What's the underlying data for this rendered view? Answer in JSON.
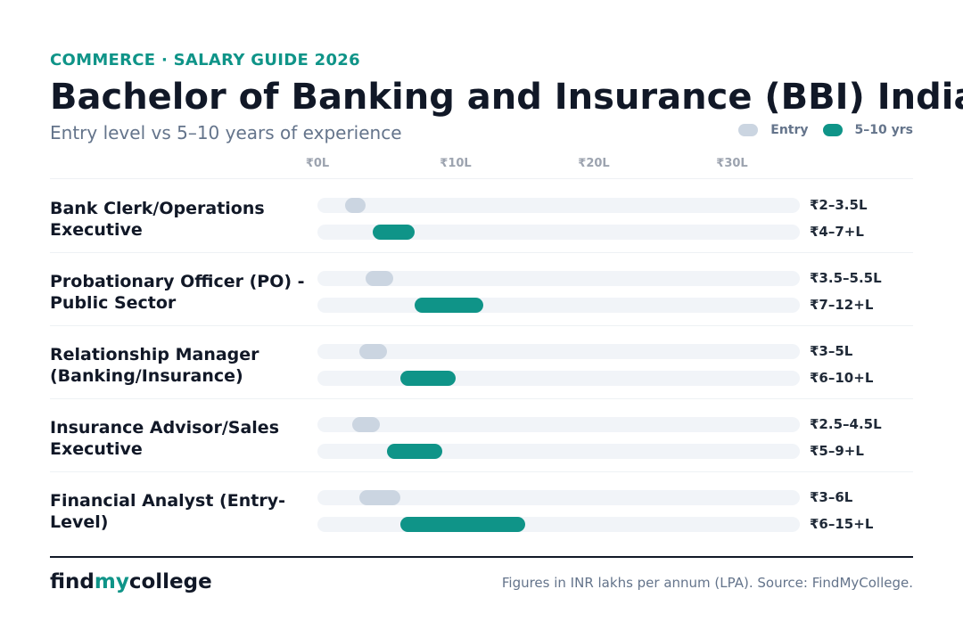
{
  "header": {
    "eyebrow": "COMMERCE · SALARY GUIDE 2026",
    "title": "Bachelor of Banking and Insurance (BBI) India",
    "subtitle": "Entry level vs 5–10 years of experience"
  },
  "legend": {
    "entry_label": "Entry",
    "senior_label": "5–10 yrs"
  },
  "colors": {
    "entry": "#cbd5e1",
    "senior": "#0f9488",
    "track": "#f1f4f8",
    "accent": "#0f9488"
  },
  "chart_data": {
    "type": "bar",
    "subtype": "range",
    "unit": "INR lakhs per annum",
    "x_ticks": [
      "₹0L",
      "₹10L",
      "₹20L",
      "₹30L"
    ],
    "x_tick_values": [
      0,
      10,
      20,
      30
    ],
    "series": [
      {
        "name": "Entry",
        "color": "#cbd5e1"
      },
      {
        "name": "5–10 yrs",
        "color": "#0f9488"
      }
    ],
    "rows": [
      {
        "label": "Bank Clerk/Operations Executive",
        "entry": {
          "min": 2,
          "max": 3.5,
          "label": "₹2–3.5L"
        },
        "senior": {
          "min": 4,
          "max": 7,
          "label": "₹4–7+L"
        }
      },
      {
        "label": "Probationary Officer (PO) - Public Sector",
        "entry": {
          "min": 3.5,
          "max": 5.5,
          "label": "₹3.5–5.5L"
        },
        "senior": {
          "min": 7,
          "max": 12,
          "label": "₹7–12+L"
        }
      },
      {
        "label": "Relationship Manager (Banking/Insurance)",
        "entry": {
          "min": 3,
          "max": 5,
          "label": "₹3–5L"
        },
        "senior": {
          "min": 6,
          "max": 10,
          "label": "₹6–10+L"
        }
      },
      {
        "label": "Insurance Advisor/Sales Executive",
        "entry": {
          "min": 2.5,
          "max": 4.5,
          "label": "₹2.5–4.5L"
        },
        "senior": {
          "min": 5,
          "max": 9,
          "label": "₹5–9+L"
        }
      },
      {
        "label": "Financial Analyst (Entry-Level)",
        "entry": {
          "min": 3,
          "max": 6,
          "label": "₹3–6L"
        },
        "senior": {
          "min": 6,
          "max": 15,
          "label": "₹6–15+L"
        }
      }
    ]
  },
  "footer": {
    "brand_part1": "find",
    "brand_part2": "my",
    "brand_part3": "college",
    "source": "Figures in INR lakhs per annum (LPA). Source: FindMyCollege."
  }
}
